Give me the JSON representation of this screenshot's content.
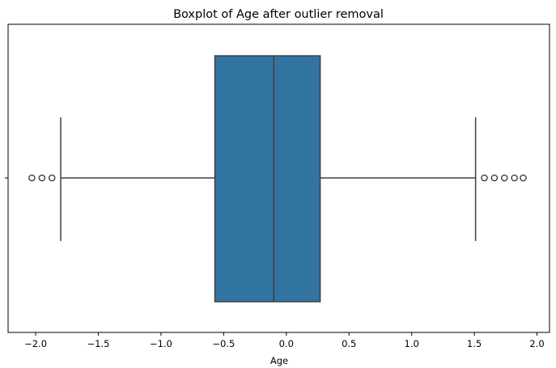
{
  "chart_data": {
    "type": "box",
    "title": "Boxplot of Age after outlier removal",
    "xlabel": "Age",
    "ylabel": "",
    "xlim": [
      -2.22,
      2.1
    ],
    "xticks": [
      -2.0,
      -1.5,
      -1.0,
      -0.5,
      0.0,
      0.5,
      1.0,
      1.5,
      2.0
    ],
    "xtick_labels": [
      "−2.0",
      "−1.5",
      "−1.0",
      "−0.5",
      "0.0",
      "0.5",
      "1.0",
      "1.5",
      "2.0"
    ],
    "orientation": "horizontal",
    "grid": false,
    "box": {
      "whisker_low": -1.8,
      "q1": -0.57,
      "median": -0.1,
      "q3": 0.27,
      "whisker_high": 1.51,
      "fliers": [
        -2.03,
        -1.95,
        -1.87,
        1.58,
        1.66,
        1.74,
        1.82,
        1.89
      ],
      "color": "#3274a1",
      "edge_color": "#3f3f3f"
    }
  }
}
